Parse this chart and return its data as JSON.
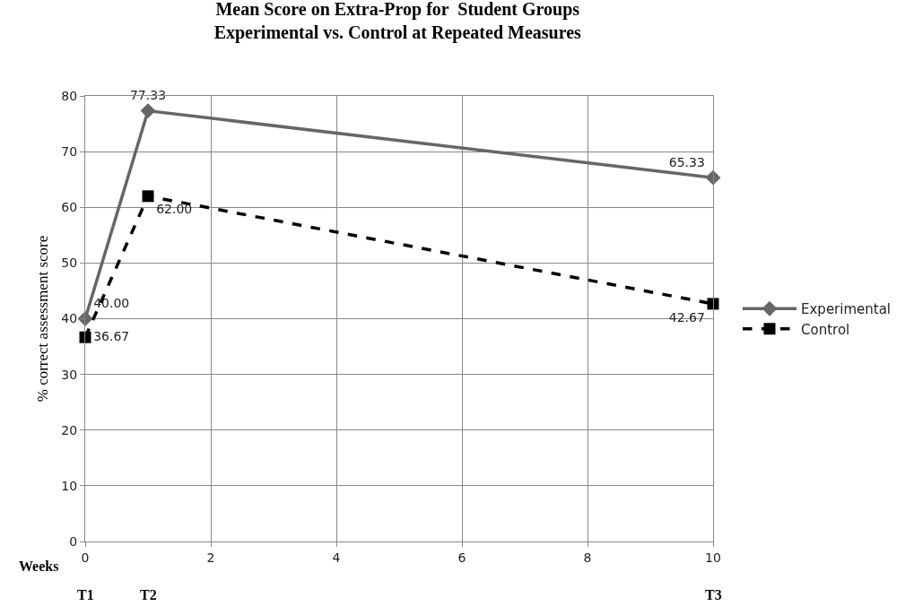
{
  "chart_data": {
    "type": "line",
    "title": "Mean Score on Extra-Prop for  Student Groups\nExperimental vs. Control at Repeated Measures",
    "xlabel": "Weeks",
    "ylabel": "% correct assessment score",
    "x": [
      0,
      1,
      10
    ],
    "series": [
      {
        "name": "Experimental",
        "color": "#666666",
        "marker": "diamond",
        "line_style": "solid",
        "values": [
          40.0,
          77.33,
          65.33
        ],
        "value_labels": [
          "40.00",
          "77.33",
          "65.33"
        ]
      },
      {
        "name": "Control",
        "color": "#000000",
        "marker": "square",
        "line_style": "dashed",
        "values": [
          36.67,
          62.0,
          42.67
        ],
        "value_labels": [
          "36.67",
          "62.00",
          "42.67"
        ]
      }
    ],
    "annotations": [
      "T1",
      "T2",
      "T3"
    ],
    "xlim": [
      0,
      10
    ],
    "xticks": [
      0,
      2,
      4,
      6,
      8,
      10
    ],
    "ylim": [
      0,
      80
    ],
    "yticks": [
      0,
      10,
      20,
      30,
      40,
      50,
      60,
      70,
      80
    ],
    "grid": true,
    "legend": "right"
  }
}
